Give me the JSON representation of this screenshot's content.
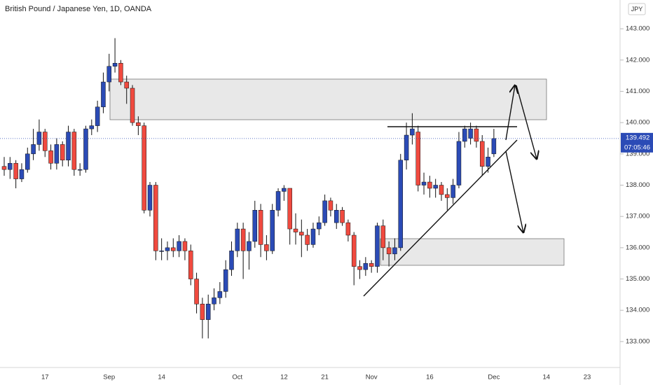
{
  "chart_data": {
    "type": "candlestick",
    "title": "British Pound / Japanese Yen, 1D, OANDA",
    "currency": "JPY",
    "up_color": "#2b4bb6",
    "down_color": "#f04a3f",
    "categories": [
      null,
      null,
      null,
      null,
      null,
      null,
      null,
      "17",
      null,
      null,
      null,
      null,
      null,
      null,
      null,
      null,
      null,
      null,
      "Sep",
      null,
      null,
      null,
      null,
      null,
      null,
      null,
      null,
      "14",
      null,
      null,
      null,
      null,
      null,
      null,
      null,
      null,
      null,
      null,
      null,
      null,
      "Oct",
      null,
      null,
      null,
      null,
      null,
      null,
      null,
      "12",
      null,
      null,
      null,
      null,
      null,
      null,
      "21",
      null,
      null,
      null,
      null,
      null,
      null,
      null,
      "Nov",
      null,
      null,
      null,
      null,
      null,
      null,
      null,
      null,
      null,
      "16",
      null,
      null,
      null,
      null,
      null,
      null,
      null,
      null,
      null,
      null,
      "Dec",
      null,
      null,
      null,
      null,
      null,
      null,
      null,
      null,
      "14",
      null,
      null,
      null,
      null,
      null,
      null,
      "23"
    ],
    "open": [
      138.6,
      138.5,
      138.7,
      138.2,
      138.5,
      139.0,
      139.3,
      139.7,
      139.1,
      138.7,
      139.3,
      138.8,
      139.7,
      138.5,
      138.5,
      139.8,
      139.9,
      140.5,
      141.3,
      141.8,
      141.9,
      141.3,
      141.1,
      140.0,
      139.9,
      137.2,
      138.0,
      135.9,
      135.9,
      136.0,
      135.9,
      136.2,
      135.9,
      135.0,
      134.2,
      133.7,
      134.2,
      134.4,
      134.6,
      135.3,
      135.9,
      136.6,
      135.9,
      136.2,
      137.2,
      136.1,
      135.9,
      137.2,
      137.8,
      137.9,
      136.6,
      136.5,
      136.4,
      136.1,
      136.6,
      136.8,
      137.5,
      136.8,
      137.2,
      136.8,
      136.4,
      135.4,
      135.3,
      135.5,
      135.4,
      136.7,
      136.0,
      135.8,
      136.0,
      138.8,
      139.6,
      139.7,
      138.0,
      138.1,
      137.9,
      138.0,
      137.7,
      137.6,
      138.0,
      139.4,
      139.5,
      139.8,
      139.4,
      138.6,
      139.0,
      null,
      null,
      null,
      null,
      null,
      null,
      null,
      null,
      null,
      null,
      null,
      null,
      null,
      null,
      null,
      null
    ],
    "high": [
      138.9,
      138.9,
      138.8,
      138.7,
      139.2,
      139.8,
      140.1,
      139.8,
      139.3,
      139.5,
      139.4,
      139.9,
      139.8,
      138.7,
      139.9,
      140.1,
      140.7,
      141.6,
      142.2,
      142.7,
      142.0,
      141.5,
      141.2,
      140.2,
      140.0,
      138.1,
      138.1,
      136.3,
      136.2,
      136.3,
      136.4,
      136.3,
      136.1,
      135.2,
      134.4,
      134.5,
      134.7,
      134.9,
      135.6,
      136.2,
      136.8,
      136.8,
      136.5,
      137.5,
      137.4,
      136.4,
      137.4,
      137.9,
      138.0,
      137.9,
      137.1,
      136.9,
      136.6,
      136.8,
      137.0,
      137.7,
      137.6,
      137.4,
      137.3,
      136.9,
      136.5,
      135.6,
      135.7,
      135.6,
      136.8,
      136.9,
      136.2,
      136.3,
      139.0,
      140.0,
      140.3,
      139.9,
      138.4,
      138.3,
      138.2,
      138.1,
      137.9,
      138.2,
      139.7,
      139.9,
      140.0,
      139.9,
      139.6,
      139.2,
      139.8,
      null,
      null,
      null,
      null,
      null,
      null,
      null,
      null,
      null,
      null,
      null,
      null,
      null,
      null,
      null,
      null
    ],
    "low": [
      138.3,
      138.2,
      137.9,
      138.1,
      138.4,
      138.8,
      139.1,
      138.9,
      138.5,
      138.5,
      138.6,
      138.6,
      138.3,
      138.3,
      138.4,
      139.6,
      139.7,
      140.3,
      141.0,
      141.6,
      141.2,
      140.6,
      139.9,
      139.6,
      137.1,
      137.0,
      135.6,
      135.6,
      135.6,
      135.7,
      135.7,
      135.6,
      134.8,
      133.9,
      133.1,
      133.1,
      134.0,
      134.2,
      134.4,
      135.1,
      135.7,
      135.0,
      135.3,
      136.0,
      135.7,
      135.6,
      135.8,
      137.0,
      137.5,
      136.1,
      136.1,
      135.7,
      135.9,
      136.0,
      136.4,
      136.7,
      137.0,
      136.6,
      136.7,
      136.2,
      134.8,
      135.0,
      135.1,
      135.2,
      135.2,
      135.6,
      135.4,
      135.6,
      135.9,
      138.5,
      139.3,
      137.8,
      137.7,
      137.6,
      137.6,
      137.5,
      137.2,
      137.4,
      137.9,
      139.2,
      139.3,
      139.2,
      138.3,
      138.4,
      138.9,
      null,
      null,
      null,
      null,
      null,
      null,
      null,
      null,
      null,
      null,
      null,
      null,
      null,
      null,
      null,
      null
    ],
    "close": [
      138.5,
      138.7,
      138.2,
      138.5,
      139.0,
      139.3,
      139.7,
      139.1,
      138.7,
      139.3,
      138.8,
      139.7,
      138.5,
      138.5,
      139.8,
      139.9,
      140.5,
      141.3,
      141.8,
      141.9,
      141.3,
      141.1,
      140.0,
      139.9,
      137.2,
      138.0,
      135.9,
      135.9,
      136.0,
      135.9,
      136.2,
      135.9,
      135.0,
      134.2,
      133.7,
      134.2,
      134.4,
      134.6,
      135.3,
      135.9,
      136.6,
      135.9,
      136.2,
      137.2,
      136.1,
      135.9,
      137.2,
      137.8,
      137.9,
      136.6,
      136.5,
      136.4,
      136.1,
      136.6,
      136.8,
      137.5,
      137.2,
      137.2,
      136.8,
      136.4,
      135.4,
      135.3,
      135.5,
      135.4,
      136.7,
      136.0,
      135.8,
      136.0,
      138.8,
      139.6,
      139.8,
      138.0,
      138.1,
      137.9,
      138.0,
      137.7,
      137.6,
      138.0,
      139.4,
      139.8,
      139.8,
      139.4,
      138.6,
      138.9,
      139.492,
      null,
      null,
      null,
      null,
      null,
      null,
      null,
      null,
      null,
      null,
      null,
      null,
      null,
      null,
      null,
      null
    ],
    "last_price": {
      "value": 139.492,
      "label": "139.492"
    },
    "countdown": "07:05:46",
    "ylim": [
      132.17,
      143.92
    ],
    "yticks": [
      {
        "value": 133,
        "label": "133.000"
      },
      {
        "value": 134,
        "label": "134.000"
      },
      {
        "value": 135,
        "label": "135.000"
      },
      {
        "value": 136,
        "label": "136.000"
      },
      {
        "value": 137,
        "label": "137.000"
      },
      {
        "value": 138,
        "label": "138.000"
      },
      {
        "value": 139,
        "label": "139.000"
      },
      {
        "value": 140,
        "label": "140.000"
      },
      {
        "value": 141,
        "label": "141.000"
      },
      {
        "value": 142,
        "label": "142.000"
      },
      {
        "value": 143,
        "label": "143.000"
      }
    ]
  }
}
